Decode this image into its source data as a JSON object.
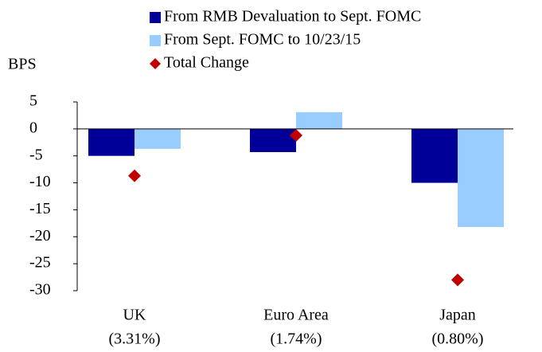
{
  "chart_data": {
    "type": "bar",
    "y_label": "BPS",
    "categories": [
      [
        "UK",
        "(3.31%)"
      ],
      [
        "Euro Area",
        "(1.74%)"
      ],
      [
        "Japan",
        "(0.80%)"
      ]
    ],
    "series": [
      {
        "name": "From RMB Devaluation to Sept. FOMC",
        "color": "#000099",
        "type": "bar",
        "values": [
          -5,
          -4.3,
          -10
        ]
      },
      {
        "name": "From Sept. FOMC to 10/23/15",
        "color": "#99ccff",
        "type": "bar",
        "values": [
          -3.7,
          3.1,
          -18.2
        ]
      },
      {
        "name": "Total Change",
        "color": "#c00000",
        "type": "scatter",
        "marker": "diamond",
        "values": [
          -8.7,
          -1.2,
          -28
        ]
      }
    ],
    "ylim": [
      -30,
      5
    ],
    "yticks": [
      5,
      0,
      -5,
      -10,
      -15,
      -20,
      -25,
      -30
    ],
    "grid": false
  }
}
